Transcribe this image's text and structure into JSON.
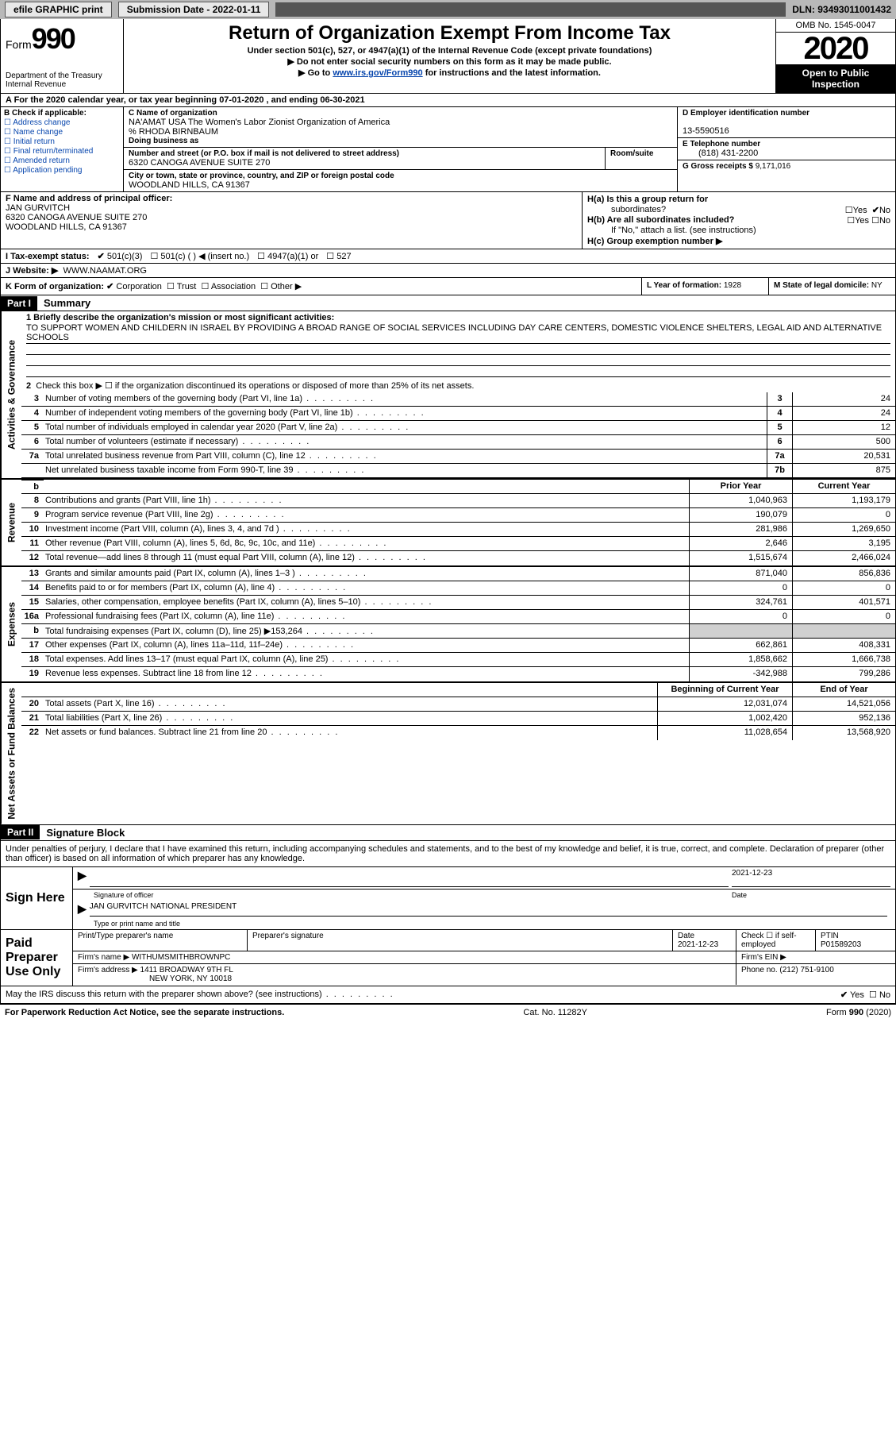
{
  "topbar": {
    "efile_label": "efile GRAPHIC print",
    "sub_date_label": "Submission Date - 2022-01-11",
    "dln_label": "DLN: 93493011001432"
  },
  "header": {
    "form_label": "Form",
    "form_num": "990",
    "dept": "Department of the Treasury\nInternal Revenue",
    "title": "Return of Organization Exempt From Income Tax",
    "sub1": "Under section 501(c), 527, or 4947(a)(1) of the Internal Revenue Code (except private foundations)",
    "sub2": "▶ Do not enter social security numbers on this form as it may be made public.",
    "sub3_pre": "▶ Go to ",
    "sub3_link": "www.irs.gov/Form990",
    "sub3_post": " for instructions and the latest information.",
    "omb": "OMB No. 1545-0047",
    "year": "2020",
    "inspect": "Open to Public Inspection"
  },
  "row_a": "A For the 2020 calendar year, or tax year beginning 07-01-2020   , and ending 06-30-2021",
  "box_b": {
    "label": "B Check if applicable:",
    "items": [
      "Address change",
      "Name change",
      "Initial return",
      "Final return/terminated",
      "Amended return",
      "Application pending"
    ]
  },
  "box_c": {
    "name_lbl": "C Name of organization",
    "name": "NA'AMAT USA The Women's Labor Zionist Organization of America",
    "care_of": "% RHODA BIRNBAUM",
    "dba_lbl": "Doing business as",
    "addr_lbl": "Number and street (or P.O. box if mail is not delivered to street address)",
    "room_lbl": "Room/suite",
    "addr": "6320 CANOGA AVENUE SUITE 270",
    "city_lbl": "City or town, state or province, country, and ZIP or foreign postal code",
    "city": "WOODLAND HILLS, CA  91367"
  },
  "box_d": {
    "lbl": "D Employer identification number",
    "val": "13-5590516"
  },
  "box_e": {
    "lbl": "E Telephone number",
    "val": "(818) 431-2200"
  },
  "box_g": {
    "lbl": "G Gross receipts $",
    "val": "9,171,016"
  },
  "box_f": {
    "lbl": "F Name and address of principal officer:",
    "name": "JAN GURVITCH",
    "addr1": "6320 CANOGA AVENUE SUITE 270",
    "addr2": "WOODLAND HILLS, CA  91367"
  },
  "box_h": {
    "a_lbl": "H(a)  Is this a group return for",
    "a_lbl2": "subordinates?",
    "b_lbl": "H(b)  Are all subordinates included?",
    "b_note": "If \"No,\" attach a list. (see instructions)",
    "c_lbl": "H(c)  Group exemption number ▶",
    "yes": "Yes",
    "no": "No"
  },
  "row_i": {
    "lbl": "I   Tax-exempt status:",
    "o1": "501(c)(3)",
    "o2": "501(c) (  ) ◀ (insert no.)",
    "o3": "4947(a)(1) or",
    "o4": "527"
  },
  "row_j": {
    "lbl": "J   Website: ▶",
    "val": "WWW.NAAMAT.ORG"
  },
  "row_k": {
    "lbl": "K Form of organization:",
    "o1": "Corporation",
    "o2": "Trust",
    "o3": "Association",
    "o4": "Other ▶",
    "l_lbl": "L Year of formation:",
    "l_val": "1928",
    "m_lbl": "M State of legal domicile:",
    "m_val": "NY"
  },
  "part1": {
    "hdr": "Part I",
    "title": "Summary"
  },
  "summary": {
    "l1_lbl": "1   Briefly describe the organization's mission or most significant activities:",
    "l1_txt": "TO SUPPORT WOMEN AND CHILDERN IN ISRAEL BY PROVIDING A BROAD RANGE OF SOCIAL SERVICES INCLUDING DAY CARE CENTERS, DOMESTIC VIOLENCE SHELTERS, LEGAL AID AND ALTERNATIVE SCHOOLS",
    "l2": "Check this box ▶ ☐ if the organization discontinued its operations or disposed of more than 25% of its net assets.",
    "rows_simple": [
      {
        "n": "3",
        "t": "Number of voting members of the governing body (Part VI, line 1a)",
        "box": "3",
        "v": "24"
      },
      {
        "n": "4",
        "t": "Number of independent voting members of the governing body (Part VI, line 1b)",
        "box": "4",
        "v": "24"
      },
      {
        "n": "5",
        "t": "Total number of individuals employed in calendar year 2020 (Part V, line 2a)",
        "box": "5",
        "v": "12"
      },
      {
        "n": "6",
        "t": "Total number of volunteers (estimate if necessary)",
        "box": "6",
        "v": "500"
      },
      {
        "n": "7a",
        "t": "Total unrelated business revenue from Part VIII, column (C), line 12",
        "box": "7a",
        "v": "20,531"
      },
      {
        "n": "",
        "t": "Net unrelated business taxable income from Form 990-T, line 39",
        "box": "7b",
        "v": "875"
      }
    ],
    "col_prior": "Prior Year",
    "col_current": "Current Year",
    "col_begin": "Beginning of Current Year",
    "col_end": "End of Year",
    "vlabels": {
      "gov": "Activities & Governance",
      "rev": "Revenue",
      "exp": "Expenses",
      "net": "Net Assets or Fund Balances"
    },
    "rev_rows": [
      {
        "n": "8",
        "t": "Contributions and grants (Part VIII, line 1h)",
        "p": "1,040,963",
        "c": "1,193,179"
      },
      {
        "n": "9",
        "t": "Program service revenue (Part VIII, line 2g)",
        "p": "190,079",
        "c": "0"
      },
      {
        "n": "10",
        "t": "Investment income (Part VIII, column (A), lines 3, 4, and 7d )",
        "p": "281,986",
        "c": "1,269,650"
      },
      {
        "n": "11",
        "t": "Other revenue (Part VIII, column (A), lines 5, 6d, 8c, 9c, 10c, and 11e)",
        "p": "2,646",
        "c": "3,195"
      },
      {
        "n": "12",
        "t": "Total revenue—add lines 8 through 11 (must equal Part VIII, column (A), line 12)",
        "p": "1,515,674",
        "c": "2,466,024"
      }
    ],
    "exp_rows": [
      {
        "n": "13",
        "t": "Grants and similar amounts paid (Part IX, column (A), lines 1–3 )",
        "p": "871,040",
        "c": "856,836"
      },
      {
        "n": "14",
        "t": "Benefits paid to or for members (Part IX, column (A), line 4)",
        "p": "0",
        "c": "0"
      },
      {
        "n": "15",
        "t": "Salaries, other compensation, employee benefits (Part IX, column (A), lines 5–10)",
        "p": "324,761",
        "c": "401,571"
      },
      {
        "n": "16a",
        "t": "Professional fundraising fees (Part IX, column (A), line 11e)",
        "p": "0",
        "c": "0"
      },
      {
        "n": "b",
        "t": "Total fundraising expenses (Part IX, column (D), line 25) ▶153,264",
        "p": "",
        "c": "",
        "grey": true
      },
      {
        "n": "17",
        "t": "Other expenses (Part IX, column (A), lines 11a–11d, 11f–24e)",
        "p": "662,861",
        "c": "408,331"
      },
      {
        "n": "18",
        "t": "Total expenses. Add lines 13–17 (must equal Part IX, column (A), line 25)",
        "p": "1,858,662",
        "c": "1,666,738"
      },
      {
        "n": "19",
        "t": "Revenue less expenses. Subtract line 18 from line 12",
        "p": "-342,988",
        "c": "799,286"
      }
    ],
    "net_rows": [
      {
        "n": "20",
        "t": "Total assets (Part X, line 16)",
        "p": "12,031,074",
        "c": "14,521,056"
      },
      {
        "n": "21",
        "t": "Total liabilities (Part X, line 26)",
        "p": "1,002,420",
        "c": "952,136"
      },
      {
        "n": "22",
        "t": "Net assets or fund balances. Subtract line 21 from line 20",
        "p": "11,028,654",
        "c": "13,568,920"
      }
    ]
  },
  "part2": {
    "hdr": "Part II",
    "title": "Signature Block"
  },
  "sig": {
    "decl": "Under penalties of perjury, I declare that I have examined this return, including accompanying schedules and statements, and to the best of my knowledge and belief, it is true, correct, and complete. Declaration of preparer (other than officer) is based on all information of which preparer has any knowledge.",
    "sign_here": "Sign Here",
    "sig_officer": "Signature of officer",
    "sig_date": "2021-12-23",
    "sig_date_lbl": "Date",
    "name_title": "JAN GURVITCH  NATIONAL PRESIDENT",
    "name_title_lbl": "Type or print name and title",
    "paid_prep": "Paid Preparer Use Only",
    "pt_name_lbl": "Print/Type preparer's name",
    "pt_sig_lbl": "Preparer's signature",
    "pt_date_lbl": "Date",
    "pt_date": "2021-12-23",
    "pt_check_lbl": "Check ☐ if self-employed",
    "ptin_lbl": "PTIN",
    "ptin": "P01589203",
    "firm_name_lbl": "Firm's name    ▶",
    "firm_name": "WITHUMSMITHBROWNPC",
    "firm_ein_lbl": "Firm's EIN ▶",
    "firm_addr_lbl": "Firm's address ▶",
    "firm_addr1": "1411 BROADWAY 9TH FL",
    "firm_addr2": "NEW YORK, NY  10018",
    "firm_phone_lbl": "Phone no.",
    "firm_phone": "(212) 751-9100",
    "discuss": "May the IRS discuss this return with the preparer shown above? (see instructions)",
    "yes": "Yes",
    "no": "No"
  },
  "footer": {
    "left": "For Paperwork Reduction Act Notice, see the separate instructions.",
    "mid": "Cat. No. 11282Y",
    "right": "Form 990 (2020)"
  }
}
